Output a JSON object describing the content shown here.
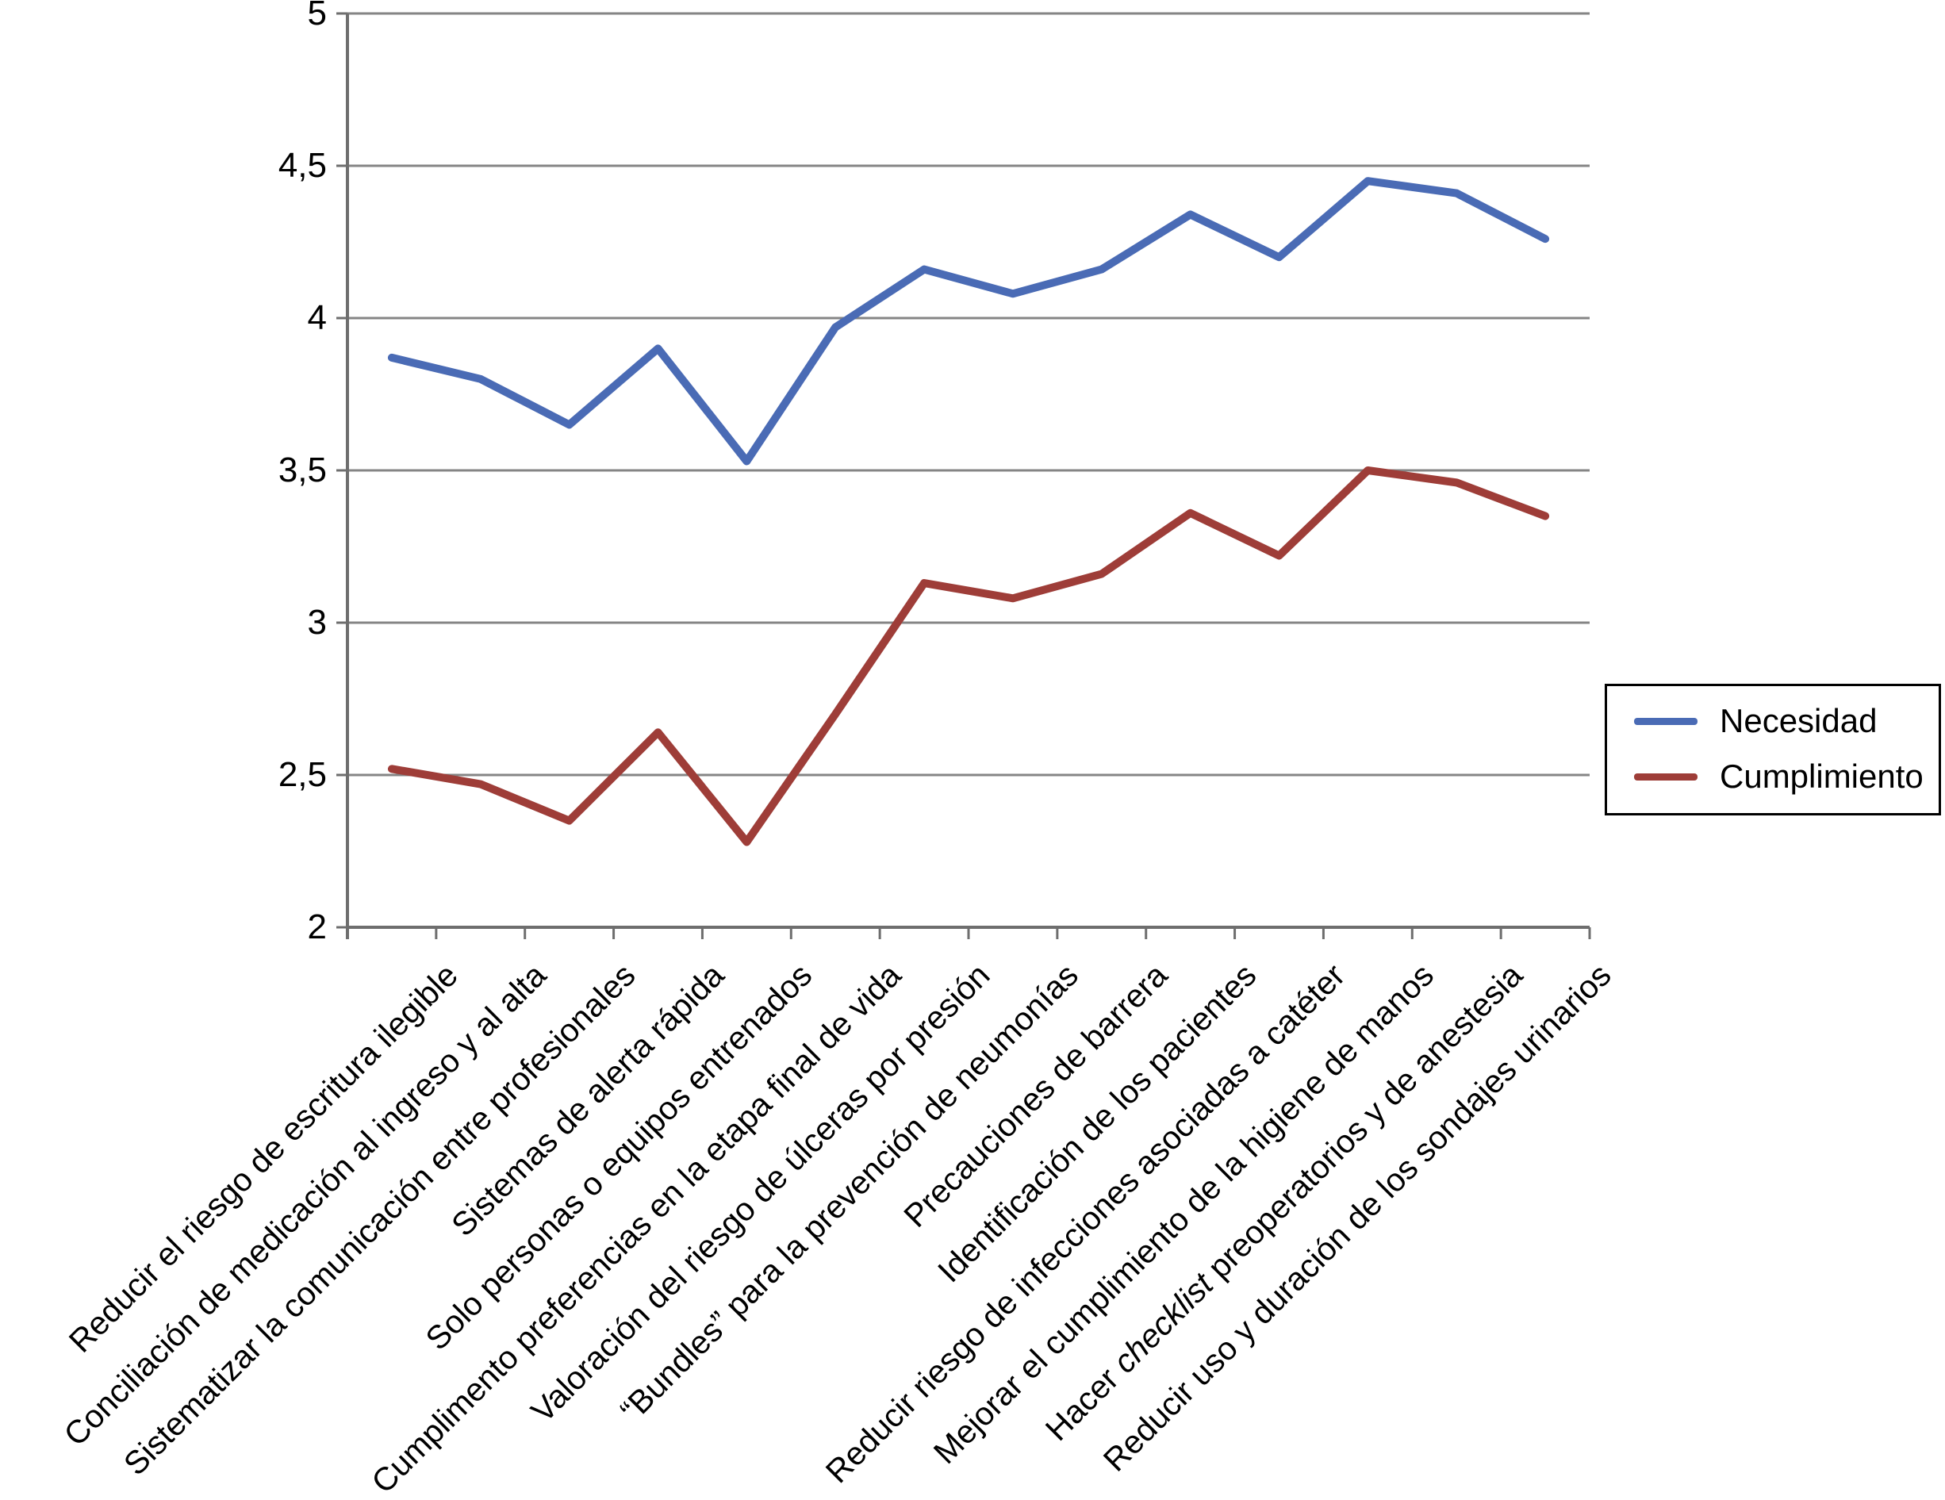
{
  "figure": {
    "background": "#ffffff"
  },
  "chart_data": {
    "type": "line",
    "title": "",
    "xlabel": "",
    "ylabel": "",
    "ylim": [
      2,
      5
    ],
    "grid": true,
    "legend_position": "right",
    "grid_color": "#858585",
    "axis_color": "#6E6E6E",
    "yticks": [
      {
        "value": 5,
        "label": "5"
      },
      {
        "value": 4.5,
        "label": "4,5"
      },
      {
        "value": 4,
        "label": "4"
      },
      {
        "value": 3.5,
        "label": "3,5"
      },
      {
        "value": 3,
        "label": "3"
      },
      {
        "value": 2.5,
        "label": "2,5"
      },
      {
        "value": 2,
        "label": "2"
      }
    ],
    "categories": [
      "Reducir el riesgo de escritura ilegible",
      "Conciliación de medicación al ingreso y al alta",
      "Sistematizar la comunicación entre profesionales",
      "Sistemas de alerta rápida",
      "Solo personas o equipos entrenados",
      "Cumplimento preferencias en la etapa final de vida",
      "Valoración del riesgo de úlceras por presión",
      "“Bundles” para la prevención de neumonías",
      "Precauciones de barrera",
      "Identificación de los pacientes",
      "Reducir riesgo de infecciones asociadas a catéter",
      "Mejorar el cumplimiento de la higiene de manos",
      "Hacer checklist preoperatorios y de anestesia",
      "Reducir uso y duración de los sondajes urinarios"
    ],
    "italic_words": {
      "12": "checklist"
    },
    "series": [
      {
        "name": "Necesidad",
        "color": "#4A6BB5",
        "values": [
          3.87,
          3.8,
          3.65,
          3.9,
          3.53,
          3.97,
          4.16,
          4.08,
          4.16,
          4.34,
          4.2,
          4.45,
          4.41,
          4.26
        ]
      },
      {
        "name": "Cumplimiento",
        "color": "#9E3D38",
        "values": [
          2.52,
          2.47,
          2.35,
          2.64,
          2.28,
          2.7,
          3.13,
          3.08,
          3.16,
          3.36,
          3.22,
          3.5,
          3.46,
          3.35
        ]
      }
    ]
  }
}
